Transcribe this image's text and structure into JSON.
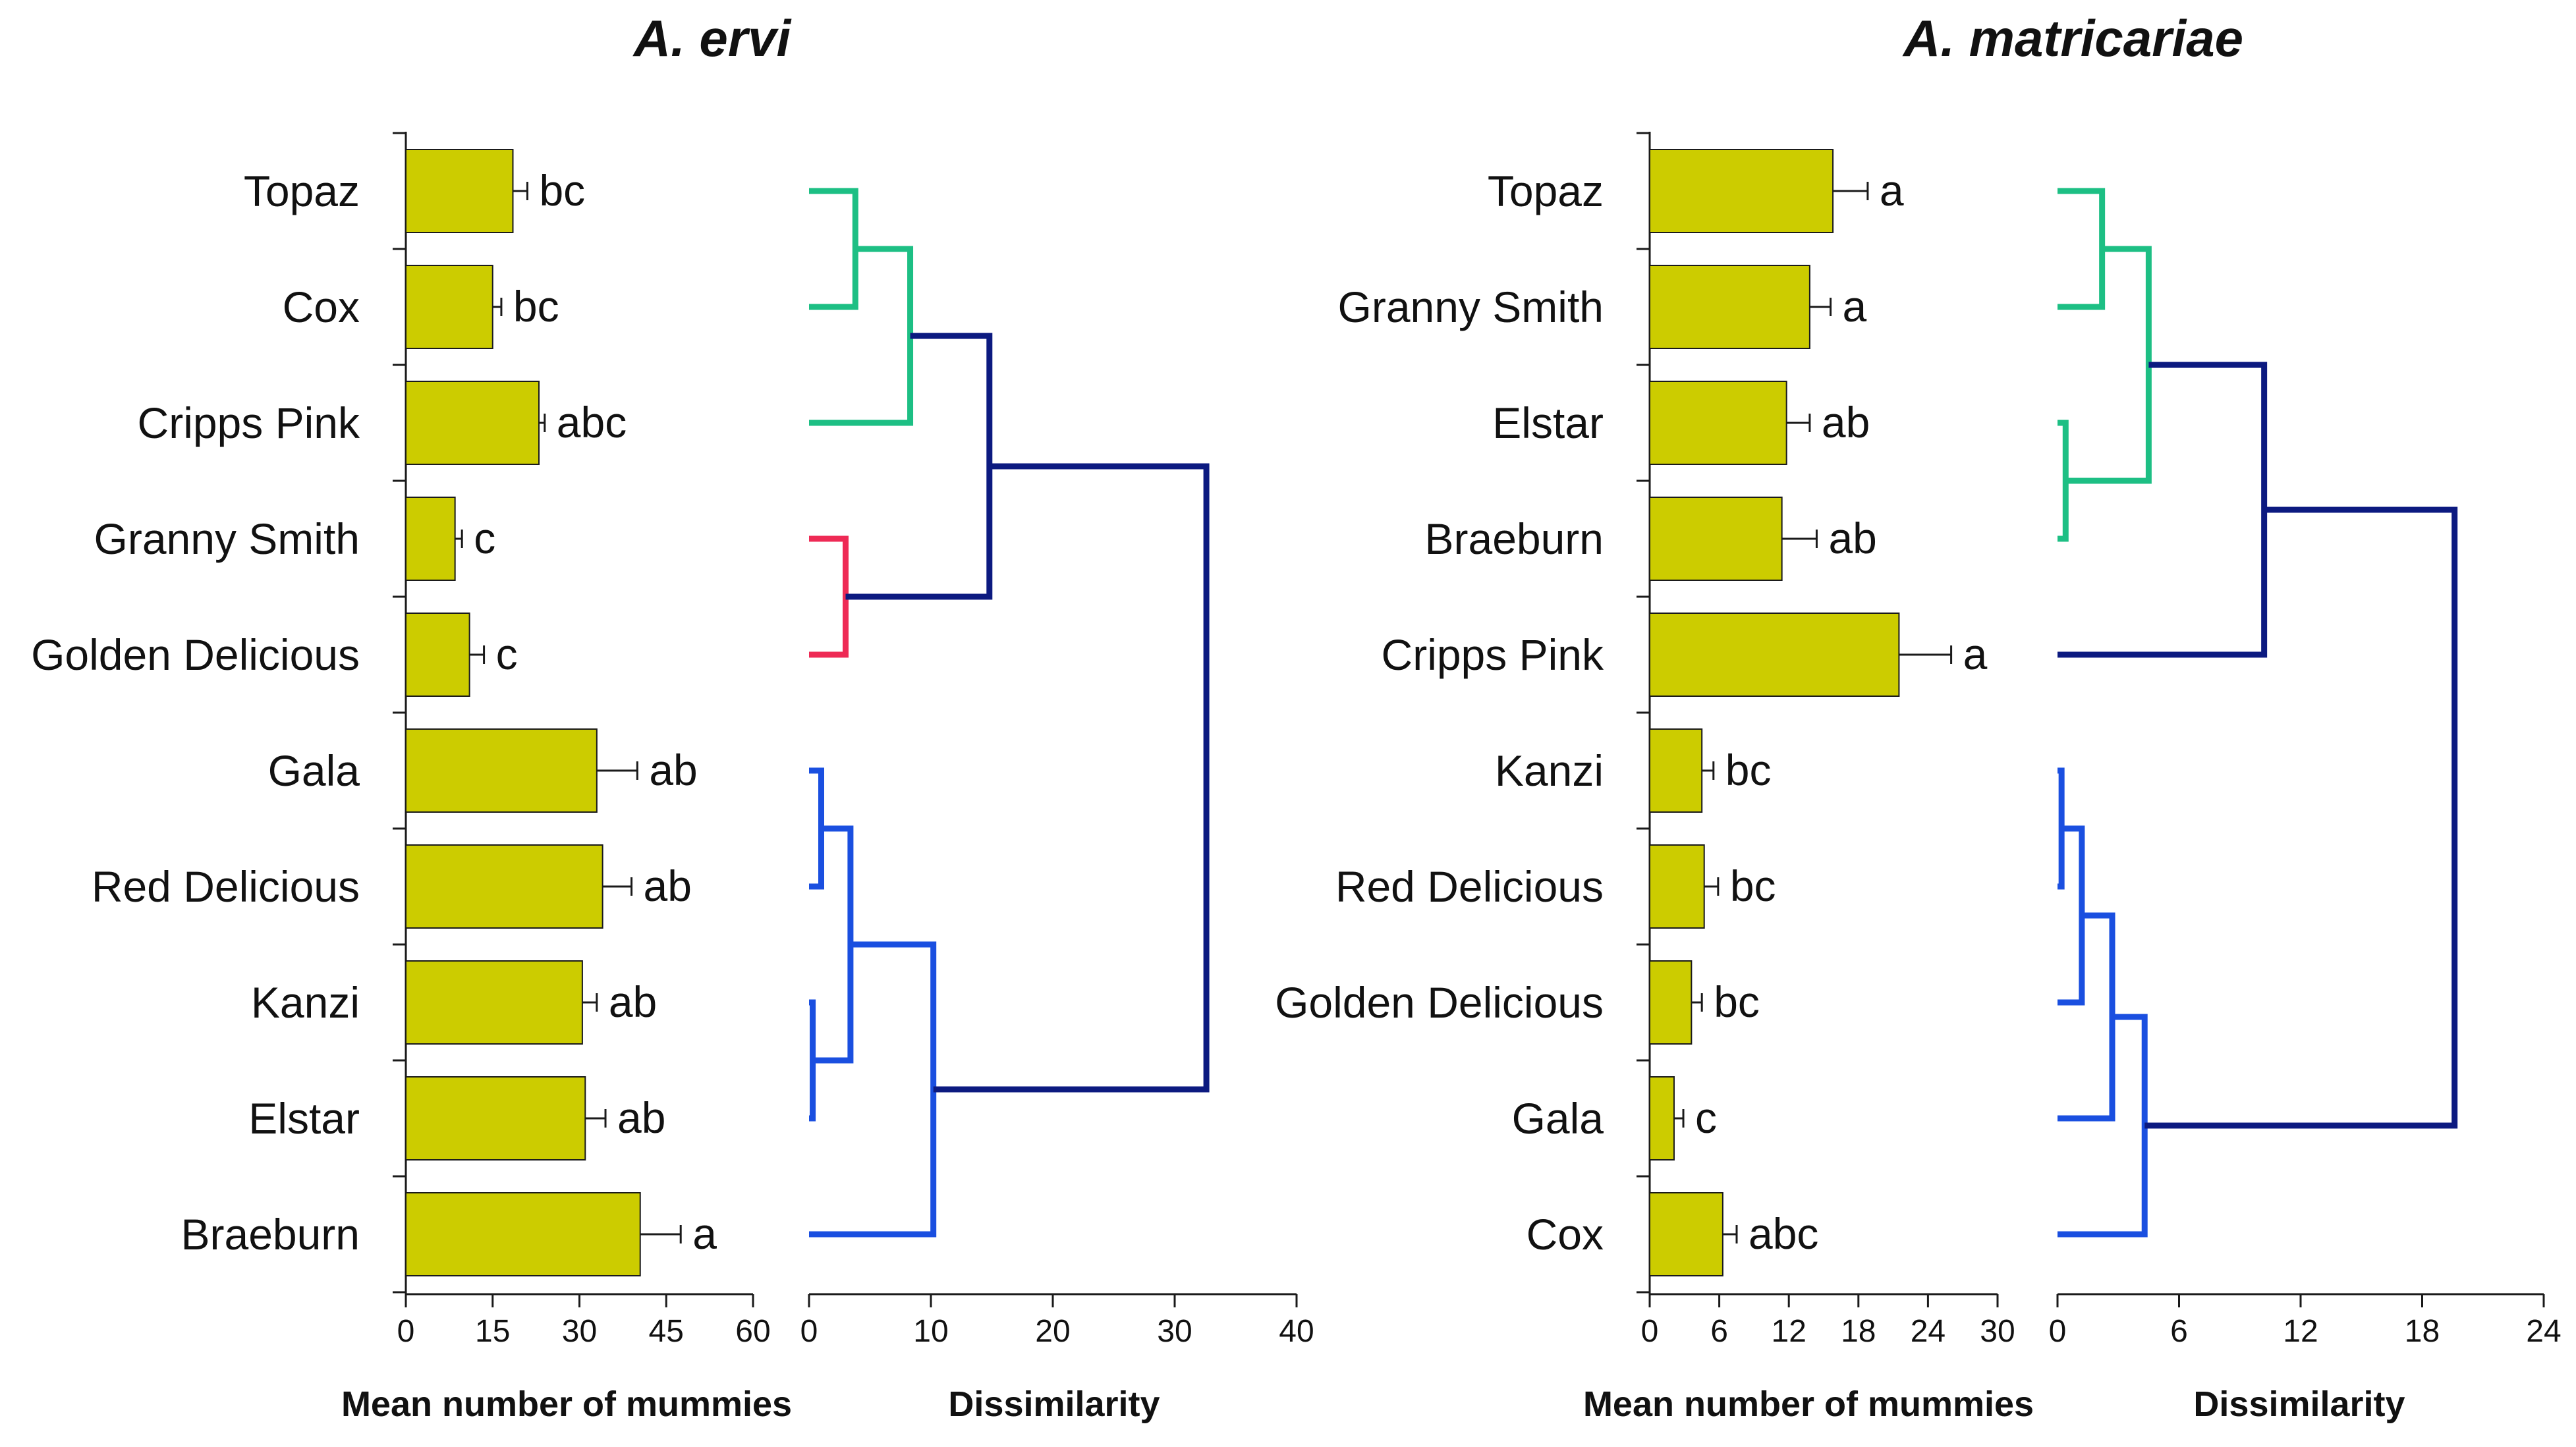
{
  "colors": {
    "bar": "#cccc00",
    "cluster_green": "#1dbf84",
    "cluster_red": "#ee2a55",
    "cluster_blue": "#1a4fe0",
    "cluster_navy": "#0c1a80"
  },
  "chart_data": [
    {
      "id": "ervi-bars",
      "type": "bar",
      "orientation": "horizontal",
      "title": "A. ervi",
      "xlabel": "Mean number of mummies",
      "xlim": [
        0,
        60
      ],
      "xticks": [
        0,
        15,
        30,
        45,
        60
      ],
      "categories": [
        "Topaz",
        "Cox",
        "Cripps Pink",
        "Granny Smith",
        "Golden Delicious",
        "Gala",
        "Red Delicious",
        "Kanzi",
        "Elstar",
        "Braeburn"
      ],
      "values": [
        18.5,
        15,
        23,
        8.5,
        11,
        33,
        34,
        30.5,
        31,
        40.5
      ],
      "errors": [
        2.5,
        1.5,
        1,
        1.2,
        2.5,
        7,
        5,
        2.5,
        3.5,
        7
      ],
      "letters": [
        "bc",
        "bc",
        "abc",
        "c",
        "c",
        "ab",
        "ab",
        "ab",
        "ab",
        "a"
      ]
    },
    {
      "id": "ervi-dendrogram",
      "type": "dendrogram",
      "xlabel": "Dissimilarity",
      "xlim": [
        0,
        40
      ],
      "xticks": [
        0,
        10,
        20,
        30,
        40
      ],
      "links": [
        {
          "a": 0,
          "b": 1,
          "h": 3.8,
          "color": "cluster_green"
        },
        {
          "a": 10,
          "b": 2,
          "h": 8.3,
          "color": "cluster_green"
        },
        {
          "a": 3,
          "b": 4,
          "h": 3.0,
          "color": "cluster_red"
        },
        {
          "a": 11,
          "b": 12,
          "h": 14.8,
          "color": "cluster_navy"
        },
        {
          "a": 5,
          "b": 6,
          "h": 1.0,
          "color": "cluster_blue"
        },
        {
          "a": 7,
          "b": 8,
          "h": 0.3,
          "color": "cluster_blue"
        },
        {
          "a": 14,
          "b": 15,
          "h": 3.4,
          "color": "cluster_blue"
        },
        {
          "a": 16,
          "b": 9,
          "h": 10.2,
          "color": "cluster_blue"
        },
        {
          "a": 13,
          "b": 17,
          "h": 32.6,
          "color": "cluster_navy"
        }
      ]
    },
    {
      "id": "matricariae-bars",
      "type": "bar",
      "orientation": "horizontal",
      "title": "A. matricariae",
      "xlabel": "Mean number of mummies",
      "xlim": [
        0,
        30
      ],
      "xticks": [
        0,
        6,
        12,
        18,
        24,
        30
      ],
      "categories": [
        "Topaz",
        "Granny Smith",
        "Elstar",
        "Braeburn",
        "Cripps Pink",
        "Kanzi",
        "Red Delicious",
        "Golden Delicious",
        "Gala",
        "Cox"
      ],
      "values": [
        15.8,
        13.8,
        11.8,
        11.4,
        21.5,
        4.5,
        4.7,
        3.6,
        2.1,
        6.3
      ],
      "errors": [
        3.0,
        1.8,
        2.0,
        3.0,
        4.5,
        1.0,
        1.2,
        0.9,
        0.8,
        1.2
      ],
      "letters": [
        "a",
        "a",
        "ab",
        "ab",
        "a",
        "bc",
        "bc",
        "bc",
        "c",
        "abc"
      ]
    },
    {
      "id": "matricariae-dendrogram",
      "type": "dendrogram",
      "xlabel": "Dissimilarity",
      "xlim": [
        0,
        24
      ],
      "xticks": [
        0,
        6,
        12,
        18,
        24
      ],
      "links": [
        {
          "a": 0,
          "b": 1,
          "h": 2.2,
          "color": "cluster_green"
        },
        {
          "a": 2,
          "b": 3,
          "h": 0.4,
          "color": "cluster_green"
        },
        {
          "a": 10,
          "b": 11,
          "h": 4.5,
          "color": "cluster_green"
        },
        {
          "a": 12,
          "b": 4,
          "h": 10.2,
          "color": "cluster_navy"
        },
        {
          "a": 5,
          "b": 6,
          "h": 0.2,
          "color": "cluster_blue"
        },
        {
          "a": 14,
          "b": 7,
          "h": 1.2,
          "color": "cluster_blue"
        },
        {
          "a": 15,
          "b": 8,
          "h": 2.7,
          "color": "cluster_blue"
        },
        {
          "a": 16,
          "b": 9,
          "h": 4.3,
          "color": "cluster_blue"
        },
        {
          "a": 13,
          "b": 17,
          "h": 19.6,
          "color": "cluster_navy"
        }
      ]
    }
  ]
}
